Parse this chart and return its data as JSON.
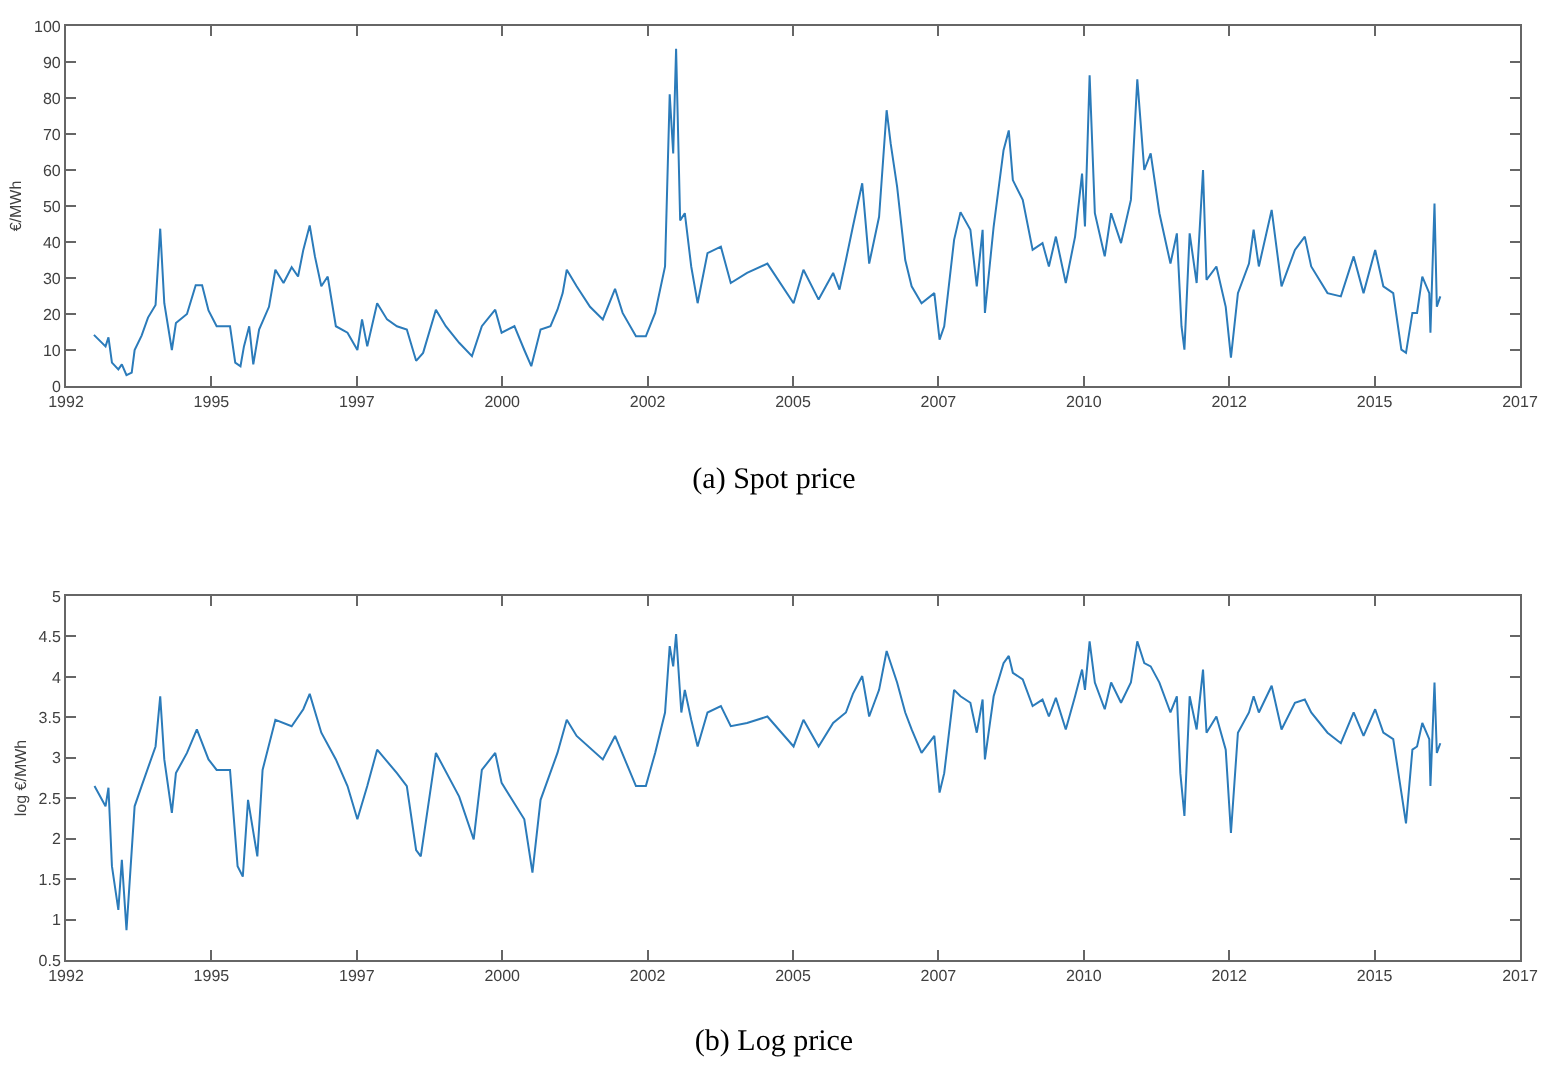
{
  "chart_data": [
    {
      "type": "line",
      "title": "(a) Spot price",
      "ylabel": "€/MWh",
      "xlim": [
        1992.5,
        2017.5
      ],
      "xticks": [
        {
          "value": 1992.5,
          "label": "1992"
        },
        1995,
        {
          "value": 1997.5,
          "label": "1997"
        },
        2000,
        {
          "value": 2002.5,
          "label": "2002"
        },
        2005,
        {
          "value": 2007.5,
          "label": "2007"
        },
        2010,
        {
          "value": 2012.5,
          "label": "2012"
        },
        2015,
        {
          "value": 2017.5,
          "label": "2017"
        }
      ],
      "ylim": [
        0,
        100
      ],
      "yticks": [
        0,
        10,
        20,
        30,
        40,
        50,
        60,
        70,
        80,
        90,
        100
      ],
      "x": [
        1992.98,
        1993.18,
        1993.23,
        1993.29,
        1993.4,
        1993.46,
        1993.54,
        1993.63,
        1993.68,
        1993.8,
        1993.91,
        1994.04,
        1994.12,
        1994.19,
        1994.32,
        1994.39,
        1994.58,
        1994.73,
        1994.84,
        1994.95,
        1995.09,
        1995.32,
        1995.41,
        1995.5,
        1995.56,
        1995.65,
        1995.72,
        1995.82,
        1995.99,
        1996.1,
        1996.24,
        1996.38,
        1996.49,
        1996.58,
        1996.69,
        1996.78,
        1996.89,
        1997.0,
        1997.14,
        1997.34,
        1997.51,
        1997.59,
        1997.68,
        1997.85,
        1998.02,
        1998.19,
        1998.36,
        1998.52,
        1998.64,
        1998.86,
        1999.03,
        1999.26,
        1999.48,
        1999.65,
        1999.88,
        1999.99,
        2000.21,
        2000.38,
        2000.5,
        2000.66,
        2000.83,
        2000.95,
        2001.04,
        2001.11,
        2001.28,
        2001.51,
        2001.73,
        2001.94,
        2002.07,
        2002.3,
        2002.47,
        2002.63,
        2002.8,
        2002.88,
        2002.94,
        2002.99,
        2003.06,
        2003.14,
        2003.25,
        2003.36,
        2003.53,
        2003.76,
        2003.93,
        2004.21,
        2004.56,
        2005.01,
        2005.18,
        2005.44,
        2005.69,
        2005.8,
        2005.91,
        2006.03,
        2006.19,
        2006.31,
        2006.48,
        2006.61,
        2006.68,
        2006.79,
        2006.93,
        2007.04,
        2007.21,
        2007.43,
        2007.52,
        2007.6,
        2007.77,
        2007.88,
        2008.05,
        2008.16,
        2008.26,
        2008.3,
        2008.45,
        2008.62,
        2008.71,
        2008.78,
        2008.95,
        2009.12,
        2009.29,
        2009.4,
        2009.52,
        2009.69,
        2009.85,
        2009.97,
        2010.02,
        2010.1,
        2010.19,
        2010.36,
        2010.47,
        2010.64,
        2010.81,
        2010.92,
        2011.04,
        2011.15,
        2011.3,
        2011.49,
        2011.6,
        2011.68,
        2011.73,
        2011.82,
        2011.94,
        2012.05,
        2012.11,
        2012.28,
        2012.44,
        2012.53,
        2012.65,
        2012.84,
        2012.92,
        2013.01,
        2013.23,
        2013.4,
        2013.63,
        2013.8,
        2013.91,
        2014.19,
        2014.42,
        2014.64,
        2014.81,
        2015.01,
        2015.15,
        2015.32,
        2015.46,
        2015.54,
        2015.65,
        2015.73,
        2015.82,
        2015.94,
        2015.96,
        2016.03,
        2016.07,
        2016.13
      ],
      "series": [
        {
          "color": "#2b7bba",
          "values": [
            14.2,
            11,
            13.5,
            6.5,
            4.6,
            6,
            3,
            3.7,
            10,
            14,
            19,
            22.5,
            43.7,
            23,
            10,
            17.5,
            20,
            28,
            28,
            21,
            16.6,
            16.6,
            6.5,
            5.5,
            11,
            16.6,
            6,
            15.7,
            22,
            32.3,
            28.6,
            33,
            30.4,
            37.8,
            44.6,
            36,
            27.7,
            30.4,
            16.6,
            14.8,
            10,
            18.5,
            11,
            23,
            18.5,
            16.6,
            15.7,
            7,
            9.2,
            21.2,
            16.6,
            12,
            8.3,
            16.6,
            21.2,
            14.8,
            16.6,
            10,
            5.5,
            15.7,
            16.6,
            21.2,
            25.8,
            32.3,
            27.7,
            22,
            18.5,
            27,
            20.3,
            13.8,
            13.8,
            20.3,
            33.2,
            81,
            64.6,
            93.7,
            46,
            48,
            33.2,
            23,
            36.9,
            38.7,
            28.6,
            31.4,
            34,
            23,
            32.3,
            24,
            31.4,
            26.8,
            35,
            44.3,
            56.3,
            34,
            47,
            76.6,
            67.3,
            55.4,
            35,
            27.7,
            23,
            25.8,
            12.9,
            16.6,
            40.6,
            48.3,
            43.4,
            27.7,
            43.4,
            20.3,
            44.3,
            65.5,
            71,
            57.2,
            51.7,
            37.8,
            39.7,
            33.2,
            41.5,
            28.6,
            41.5,
            59,
            44.3,
            86.3,
            48,
            36,
            48,
            39.7,
            51.7,
            85.2,
            60,
            64.6,
            48,
            34,
            42.4,
            16.6,
            10.1,
            42.4,
            28.6,
            60,
            29.5,
            33.2,
            22,
            7.9,
            25.8,
            34,
            43.4,
            33.2,
            48.9,
            27.7,
            37.8,
            41.5,
            33.2,
            25.8,
            24.9,
            36,
            25.8,
            37.8,
            27.7,
            25.8,
            10.1,
            9.2,
            20.3,
            20.3,
            30.4,
            25.8,
            14.8,
            50.7,
            22,
            24.9
          ]
        }
      ]
    },
    {
      "type": "line",
      "title": "(b) Log price",
      "ylabel": "log €/MWh",
      "xlim": [
        1992.5,
        2017.5
      ],
      "xticks": [
        {
          "value": 1992.5,
          "label": "1992"
        },
        1995,
        {
          "value": 1997.5,
          "label": "1997"
        },
        2000,
        {
          "value": 2002.5,
          "label": "2002"
        },
        2005,
        {
          "value": 2007.5,
          "label": "2007"
        },
        2010,
        {
          "value": 2012.5,
          "label": "2012"
        },
        2015,
        {
          "value": 2017.5,
          "label": "2017"
        }
      ],
      "ylim": [
        0.5,
        5
      ],
      "yticks": [
        0.5,
        1,
        1.5,
        2,
        2.5,
        3,
        3.5,
        4,
        4.5,
        5
      ],
      "x": [
        1992.99,
        1993.18,
        1993.23,
        1993.29,
        1993.4,
        1993.46,
        1993.54,
        1993.68,
        1993.8,
        1994.04,
        1994.12,
        1994.19,
        1994.32,
        1994.39,
        1994.58,
        1994.75,
        1994.95,
        1995.09,
        1995.32,
        1995.45,
        1995.54,
        1995.63,
        1995.79,
        1995.88,
        1996.1,
        1996.38,
        1996.58,
        1996.69,
        1996.89,
        1997.14,
        1997.34,
        1997.51,
        1997.68,
        1997.85,
        1998.19,
        1998.36,
        1998.52,
        1998.6,
        1998.86,
        1999.26,
        1999.51,
        1999.65,
        1999.88,
        1999.99,
        2000.38,
        2000.52,
        2000.66,
        2000.95,
        2001.11,
        2001.28,
        2001.73,
        2001.94,
        2002.3,
        2002.47,
        2002.63,
        2002.8,
        2002.88,
        2002.94,
        2002.99,
        2003.08,
        2003.14,
        2003.25,
        2003.36,
        2003.53,
        2003.76,
        2003.93,
        2004.21,
        2004.56,
        2005.01,
        2005.18,
        2005.44,
        2005.69,
        2005.91,
        2006.03,
        2006.19,
        2006.31,
        2006.48,
        2006.61,
        2006.79,
        2006.93,
        2007.04,
        2007.21,
        2007.43,
        2007.52,
        2007.6,
        2007.77,
        2007.88,
        2008.05,
        2008.16,
        2008.26,
        2008.3,
        2008.45,
        2008.62,
        2008.71,
        2008.78,
        2008.95,
        2009.12,
        2009.29,
        2009.4,
        2009.52,
        2009.69,
        2009.85,
        2009.97,
        2010.02,
        2010.1,
        2010.19,
        2010.36,
        2010.47,
        2010.64,
        2010.81,
        2010.92,
        2011.04,
        2011.15,
        2011.3,
        2011.49,
        2011.6,
        2011.66,
        2011.73,
        2011.82,
        2011.94,
        2012.05,
        2012.11,
        2012.28,
        2012.44,
        2012.53,
        2012.65,
        2012.84,
        2012.92,
        2013.01,
        2013.23,
        2013.4,
        2013.63,
        2013.8,
        2013.91,
        2014.19,
        2014.42,
        2014.64,
        2014.81,
        2015.01,
        2015.15,
        2015.32,
        2015.46,
        2015.54,
        2015.65,
        2015.73,
        2015.82,
        2015.94,
        2015.96,
        2016.03,
        2016.07,
        2016.13
      ],
      "series": [
        {
          "color": "#2b7bba",
          "values": [
            2.65,
            2.4,
            2.63,
            1.66,
            1.12,
            1.74,
            0.87,
            2.4,
            2.65,
            3.14,
            3.76,
            2.98,
            2.32,
            2.81,
            3.06,
            3.35,
            2.98,
            2.85,
            2.85,
            1.66,
            1.53,
            2.48,
            1.78,
            2.85,
            3.47,
            3.39,
            3.6,
            3.79,
            3.31,
            2.98,
            2.65,
            2.24,
            2.65,
            3.1,
            2.81,
            2.65,
            1.86,
            1.78,
            3.06,
            2.52,
            1.99,
            2.85,
            3.06,
            2.69,
            2.24,
            1.58,
            2.48,
            3.06,
            3.47,
            3.27,
            2.98,
            3.27,
            2.65,
            2.65,
            3.06,
            3.56,
            4.38,
            4.13,
            4.53,
            3.56,
            3.84,
            3.47,
            3.14,
            3.56,
            3.64,
            3.39,
            3.43,
            3.51,
            3.14,
            3.47,
            3.14,
            3.43,
            3.56,
            3.79,
            4.01,
            3.51,
            3.84,
            4.32,
            3.93,
            3.56,
            3.35,
            3.06,
            3.27,
            2.57,
            2.81,
            3.84,
            3.76,
            3.68,
            3.31,
            3.72,
            2.98,
            3.76,
            4.17,
            4.26,
            4.05,
            3.97,
            3.64,
            3.72,
            3.51,
            3.74,
            3.35,
            3.76,
            4.09,
            3.84,
            4.44,
            3.93,
            3.6,
            3.93,
            3.68,
            3.93,
            4.44,
            4.17,
            4.13,
            3.93,
            3.56,
            3.76,
            2.81,
            2.28,
            3.76,
            3.35,
            4.09,
            3.31,
            3.51,
            3.1,
            2.07,
            3.31,
            3.56,
            3.76,
            3.56,
            3.89,
            3.35,
            3.68,
            3.72,
            3.56,
            3.31,
            3.18,
            3.56,
            3.27,
            3.6,
            3.31,
            3.23,
            2.57,
            2.19,
            3.1,
            3.14,
            3.43,
            3.23,
            2.65,
            3.93,
            3.06,
            3.18
          ]
        }
      ]
    }
  ]
}
